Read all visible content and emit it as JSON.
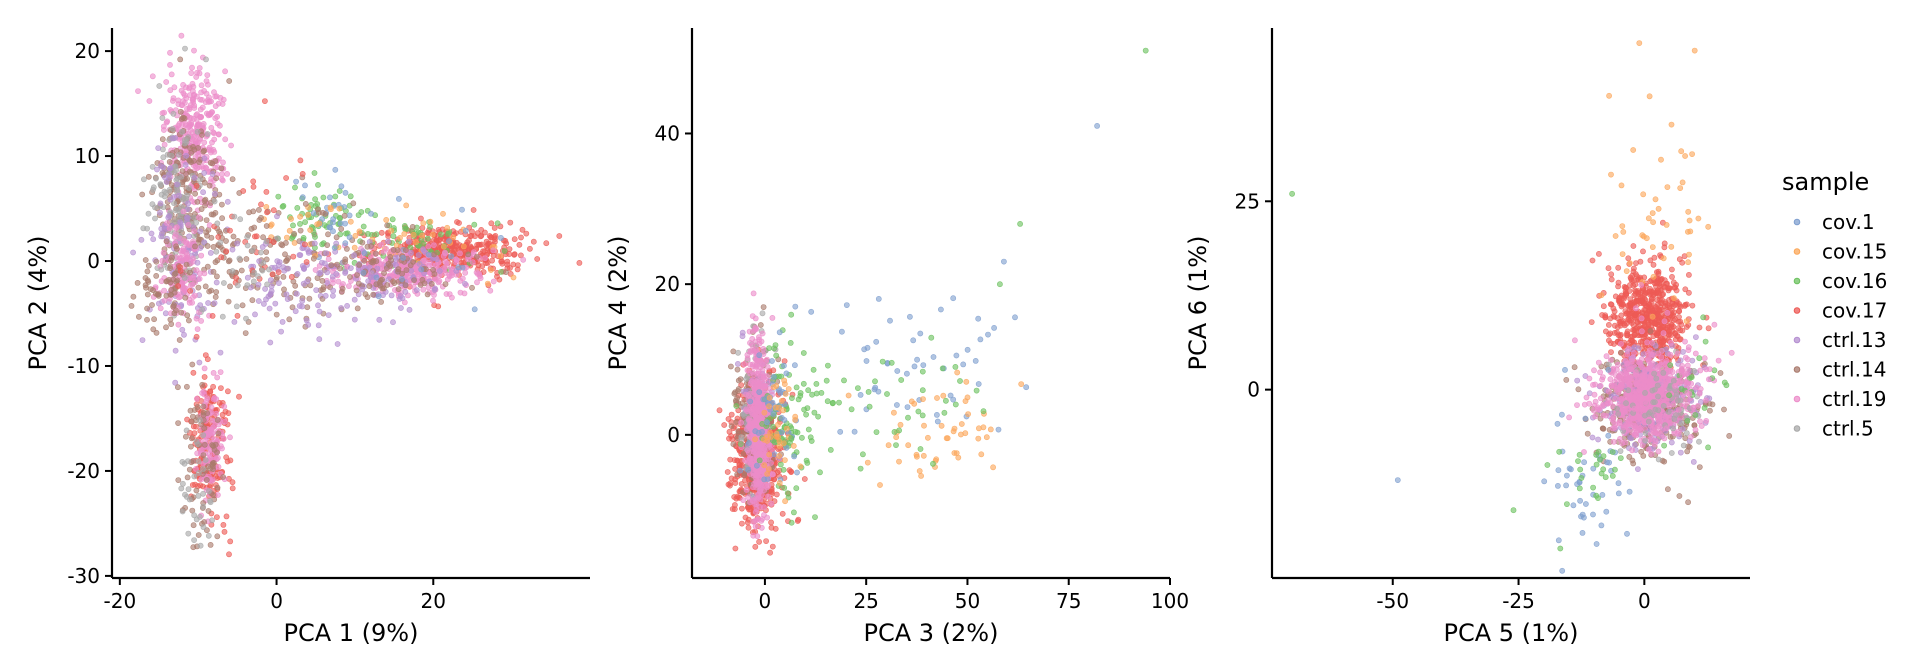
{
  "chart_data": [
    {
      "type": "scatter",
      "xlabel": "PCA 1 (9%)",
      "ylabel": "PCA 2 (4%)",
      "xlim": [
        -21,
        40
      ],
      "ylim": [
        -30.2,
        22.2
      ],
      "xticks": [
        -20,
        0,
        20
      ],
      "yticks": [
        20,
        10,
        0,
        -10,
        -20,
        -30
      ],
      "xtick_labels": [
        "-20",
        "0",
        "20"
      ],
      "ytick_labels": [
        "20",
        "10",
        "0",
        "-10",
        "-20",
        "-30"
      ],
      "clusters": [
        {
          "series": "ctrl.19",
          "cx": -10.5,
          "cy": 11.5,
          "sx": 1.8,
          "sy": 3.2,
          "n": 320
        },
        {
          "series": "ctrl.14",
          "cx": -11.5,
          "cy": 6.0,
          "sx": 2.2,
          "sy": 4.0,
          "n": 200
        },
        {
          "series": "ctrl.5",
          "cx": -13.0,
          "cy": 6.0,
          "sx": 1.8,
          "sy": 4.5,
          "n": 110
        },
        {
          "series": "ctrl.13",
          "cx": -12.5,
          "cy": 1.5,
          "sx": 2.0,
          "sy": 4.5,
          "n": 110
        },
        {
          "series": "ctrl.19",
          "cx": -12.0,
          "cy": -1.0,
          "sx": 1.4,
          "sy": 2.6,
          "n": 120
        },
        {
          "series": "ctrl.14",
          "cx": -14.0,
          "cy": -3.0,
          "sx": 1.6,
          "sy": 2.0,
          "n": 60
        },
        {
          "series": "cov.17",
          "cx": -8.5,
          "cy": -16.5,
          "sx": 1.2,
          "sy": 4.0,
          "n": 170
        },
        {
          "series": "ctrl.19",
          "cx": -8.5,
          "cy": -17.0,
          "sx": 0.9,
          "sy": 3.0,
          "n": 120
        },
        {
          "series": "ctrl.14",
          "cx": -9.5,
          "cy": -18.5,
          "sx": 1.3,
          "sy": 4.0,
          "n": 70
        },
        {
          "series": "ctrl.5",
          "cx": -10.5,
          "cy": -21.5,
          "sx": 1.2,
          "sy": 3.0,
          "n": 35
        },
        {
          "series": "cov.17",
          "cx": 22.0,
          "cy": 1.0,
          "sx": 5.0,
          "sy": 1.3,
          "n": 380
        },
        {
          "series": "cov.16",
          "cx": 17.0,
          "cy": 2.5,
          "sx": 6.0,
          "sy": 1.5,
          "n": 70
        },
        {
          "series": "cov.15",
          "cx": 20.0,
          "cy": 1.5,
          "sx": 5.0,
          "sy": 1.5,
          "n": 40
        },
        {
          "series": "ctrl.19",
          "cx": 16.5,
          "cy": -1.0,
          "sx": 4.5,
          "sy": 1.1,
          "n": 300
        },
        {
          "series": "ctrl.13",
          "cx": 14.0,
          "cy": -1.5,
          "sx": 5.0,
          "sy": 1.6,
          "n": 90
        },
        {
          "series": "ctrl.14",
          "cx": 14.0,
          "cy": -1.0,
          "sx": 5.0,
          "sy": 1.5,
          "n": 90
        },
        {
          "series": "cov.16",
          "cx": 5.0,
          "cy": 4.5,
          "sx": 2.5,
          "sy": 1.5,
          "n": 50
        },
        {
          "series": "cov.1",
          "cx": 7.0,
          "cy": 5.0,
          "sx": 2.5,
          "sy": 1.5,
          "n": 25
        },
        {
          "series": "cov.15",
          "cx": 3.0,
          "cy": 3.5,
          "sx": 3.0,
          "sy": 1.5,
          "n": 20
        },
        {
          "series": "ctrl.14",
          "cx": -1.0,
          "cy": 0.0,
          "sx": 6.0,
          "sy": 3.0,
          "n": 140
        },
        {
          "series": "ctrl.13",
          "cx": 1.0,
          "cy": -2.5,
          "sx": 5.0,
          "sy": 2.5,
          "n": 90
        },
        {
          "series": "cov.17",
          "cx": -3.0,
          "cy": 2.0,
          "sx": 5.0,
          "sy": 3.5,
          "n": 40
        },
        {
          "series": "ctrl.5",
          "cx": -5.0,
          "cy": -1.0,
          "sx": 4.0,
          "sy": 3.0,
          "n": 30
        },
        {
          "series": "cov.1",
          "cx": 18.0,
          "cy": 2.0,
          "sx": 6.0,
          "sy": 2.5,
          "n": 20
        }
      ]
    },
    {
      "type": "scatter",
      "xlabel": "PCA 3 (2%)",
      "ylabel": "PCA 4 (2%)",
      "xlim": [
        -18,
        100
      ],
      "ylim": [
        -19,
        54
      ],
      "xticks": [
        0,
        25,
        50,
        75,
        100
      ],
      "yticks": [
        40,
        20,
        0
      ],
      "xtick_labels": [
        "0",
        "25",
        "50",
        "75",
        "100"
      ],
      "ytick_labels": [
        "40",
        "20",
        "0"
      ],
      "clusters": [
        {
          "series": "cov.17",
          "cx": -2.0,
          "cy": -3.0,
          "sx": 3.0,
          "sy": 4.5,
          "n": 550
        },
        {
          "series": "ctrl.14",
          "cx": -2.5,
          "cy": 2.0,
          "sx": 2.5,
          "sy": 5.0,
          "n": 160
        },
        {
          "series": "ctrl.13",
          "cx": -2.0,
          "cy": 3.0,
          "sx": 2.0,
          "sy": 5.0,
          "n": 90
        },
        {
          "series": "ctrl.5",
          "cx": -3.0,
          "cy": 4.0,
          "sx": 2.0,
          "sy": 5.0,
          "n": 50
        },
        {
          "series": "ctrl.19",
          "cx": -1.5,
          "cy": 1.0,
          "sx": 1.4,
          "sy": 6.0,
          "n": 500
        },
        {
          "series": "cov.16",
          "cx": 6.0,
          "cy": 2.0,
          "sx": 4.0,
          "sy": 5.0,
          "n": 90
        },
        {
          "series": "cov.1",
          "cx": 2.0,
          "cy": 3.0,
          "sx": 3.5,
          "sy": 5.0,
          "n": 50
        },
        {
          "series": "cov.15",
          "cx": 3.0,
          "cy": 1.0,
          "sx": 3.0,
          "sy": 4.0,
          "n": 40
        },
        {
          "series": "cov.1",
          "cx": 38.0,
          "cy": 8.0,
          "sx": 12.0,
          "sy": 5.0,
          "n": 50
        },
        {
          "series": "cov.15",
          "cx": 43.0,
          "cy": 1.0,
          "sx": 9.0,
          "sy": 4.0,
          "n": 50
        },
        {
          "series": "cov.16",
          "cx": 28.0,
          "cy": 4.0,
          "sx": 12.0,
          "sy": 4.0,
          "n": 45
        }
      ],
      "points": [
        {
          "series": "cov.16",
          "x": 94,
          "y": 51
        },
        {
          "series": "cov.1",
          "x": 82,
          "y": 41
        },
        {
          "series": "cov.16",
          "x": 63,
          "y": 28
        },
        {
          "series": "cov.1",
          "x": 59,
          "y": 23
        },
        {
          "series": "cov.16",
          "x": 58,
          "y": 20
        }
      ]
    },
    {
      "type": "scatter",
      "xlabel": "PCA 5 (1%)",
      "ylabel": "PCA 6 (1%)",
      "xlim": [
        -74,
        21
      ],
      "ylim": [
        -25,
        48
      ],
      "xticks": [
        -50,
        -25,
        0
      ],
      "yticks": [
        25,
        0
      ],
      "xtick_labels": [
        "-50",
        "-25",
        "0"
      ],
      "ytick_labels": [
        "25",
        "0"
      ],
      "clusters": [
        {
          "series": "cov.17",
          "cx": 0.5,
          "cy": 9.5,
          "sx": 4.0,
          "sy": 3.5,
          "n": 600
        },
        {
          "series": "ctrl.14",
          "cx": 1.0,
          "cy": -2.0,
          "sx": 5.5,
          "sy": 3.5,
          "n": 320
        },
        {
          "series": "ctrl.13",
          "cx": 1.0,
          "cy": -1.0,
          "sx": 5.0,
          "sy": 3.5,
          "n": 220
        },
        {
          "series": "ctrl.19",
          "cx": 0.0,
          "cy": -1.0,
          "sx": 4.5,
          "sy": 2.8,
          "n": 650
        },
        {
          "series": "ctrl.5",
          "cx": 2.0,
          "cy": -2.0,
          "sx": 5.0,
          "sy": 3.0,
          "n": 60
        },
        {
          "series": "cov.15",
          "cx": 1.0,
          "cy": 23.0,
          "sx": 5.0,
          "sy": 6.0,
          "n": 45
        },
        {
          "series": "cov.1",
          "cx": -12.0,
          "cy": -12.0,
          "sx": 4.0,
          "sy": 5.0,
          "n": 45
        },
        {
          "series": "cov.16",
          "cx": -11.0,
          "cy": -11.0,
          "sx": 5.0,
          "sy": 3.0,
          "n": 25
        },
        {
          "series": "cov.16",
          "cx": 10.0,
          "cy": 0.0,
          "sx": 3.0,
          "sy": 4.0,
          "n": 20
        },
        {
          "series": "ctrl.19",
          "cx": 5.0,
          "cy": 2.0,
          "sx": 5.0,
          "sy": 4.0,
          "n": 60
        }
      ],
      "points": [
        {
          "series": "cov.16",
          "x": -70,
          "y": 26
        },
        {
          "series": "cov.1",
          "x": -49,
          "y": -12
        },
        {
          "series": "cov.15",
          "x": -1,
          "y": 46
        },
        {
          "series": "cov.15",
          "x": 10,
          "y": 45
        },
        {
          "series": "cov.15",
          "x": -7,
          "y": 39
        },
        {
          "series": "cov.16",
          "x": -26,
          "y": -16
        },
        {
          "series": "cov.1",
          "x": -17,
          "y": -20
        }
      ]
    }
  ],
  "legend": {
    "title": "sample",
    "placement": "right",
    "items": [
      {
        "name": "cov.1",
        "color": "#7f9fcf"
      },
      {
        "name": "cov.15",
        "color": "#fba75a"
      },
      {
        "name": "cov.16",
        "color": "#6cc15f"
      },
      {
        "name": "cov.17",
        "color": "#ed5a55"
      },
      {
        "name": "ctrl.13",
        "color": "#b48ed0"
      },
      {
        "name": "ctrl.14",
        "color": "#a97a6c"
      },
      {
        "name": "ctrl.19",
        "color": "#ec8dc9"
      },
      {
        "name": "ctrl.5",
        "color": "#a8a8a8"
      }
    ]
  }
}
